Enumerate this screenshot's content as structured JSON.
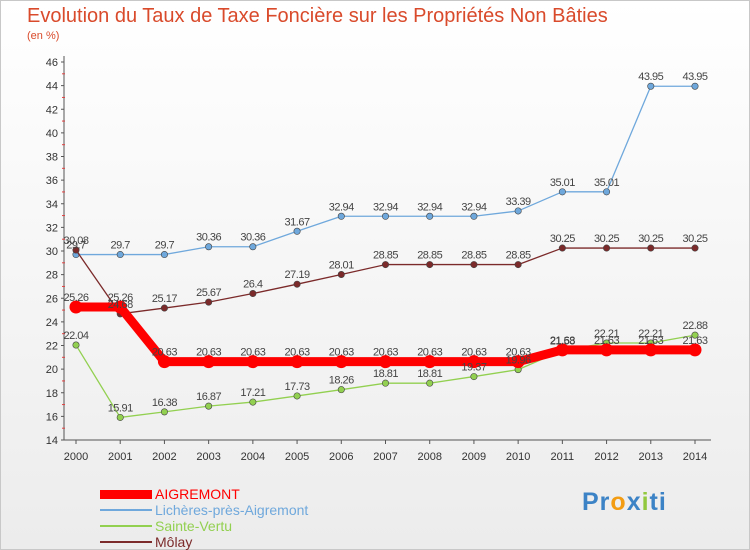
{
  "chart_data": {
    "type": "line",
    "title": "Evolution du Taux de Taxe Foncière sur les Propriétés Non Bâties",
    "ylabel": "(en %)",
    "xlabel": "",
    "ylim": [
      14,
      46
    ],
    "yticks": [
      14,
      16,
      18,
      20,
      22,
      24,
      26,
      28,
      30,
      32,
      34,
      36,
      38,
      40,
      42,
      44,
      46
    ],
    "x": [
      "2000",
      "2001",
      "2002",
      "2003",
      "2004",
      "2005",
      "2006",
      "2007",
      "2008",
      "2009",
      "2010",
      "2011",
      "2012",
      "2013",
      "2014"
    ],
    "grid": false,
    "legend_position": "bottom-left",
    "series": [
      {
        "name": "AIGREMONT",
        "color": "#ff0000",
        "values": [
          25.26,
          25.26,
          20.63,
          20.63,
          20.63,
          20.63,
          20.63,
          20.63,
          20.63,
          20.63,
          20.63,
          21.63,
          21.63,
          21.63,
          21.63
        ],
        "labels": [
          "25.26",
          "25.26",
          "20.63",
          "20.63",
          "20.63",
          "20.63",
          "20.63",
          "20.63",
          "20.63",
          "20.63",
          "20.63",
          "21.63",
          "21.63",
          "21.63",
          "21.63"
        ]
      },
      {
        "name": "Lichères-près-Aigremont",
        "color": "#6fa8dc",
        "values": [
          29.7,
          29.7,
          29.7,
          30.36,
          30.36,
          31.67,
          32.94,
          32.94,
          32.94,
          32.94,
          33.39,
          35.01,
          35.01,
          43.95,
          43.95
        ],
        "labels": [
          "29.7",
          "29.7",
          "29.7",
          "30.36",
          "30.36",
          "31.67",
          "32.94",
          "32.94",
          "32.94",
          "32.94",
          "33.39",
          "35.01",
          "35.01",
          "43.95",
          "43.95"
        ]
      },
      {
        "name": "Sainte-Vertu",
        "color": "#92d050",
        "values": [
          22.04,
          15.91,
          16.38,
          16.87,
          17.21,
          17.73,
          18.26,
          18.81,
          18.81,
          19.37,
          19.96,
          21.58,
          22.21,
          22.21,
          22.88
        ],
        "labels": [
          "22.04",
          "15.91",
          "16.38",
          "16.87",
          "17.21",
          "17.73",
          "18.26",
          "18.81",
          "18.81",
          "19.37",
          "19.96",
          "21.58",
          "22.21",
          "22.21",
          "22.88"
        ]
      },
      {
        "name": "Môlay",
        "color": "#7b2a2a",
        "values": [
          30.08,
          24.68,
          25.17,
          25.67,
          26.4,
          27.19,
          28.01,
          28.85,
          28.85,
          28.85,
          28.85,
          30.25,
          30.25,
          30.25,
          30.25
        ],
        "labels": [
          "30.08",
          "24.68",
          "25.17",
          "25.67",
          "26.4",
          "27.19",
          "28.01",
          "28.85",
          "28.85",
          "28.85",
          "28.85",
          "30.25",
          "30.25",
          "30.25",
          "30.25"
        ]
      }
    ]
  },
  "logo": {
    "parts": [
      {
        "text": "Pr",
        "color": "#3c83c6"
      },
      {
        "text": "o",
        "color": "#f39c12"
      },
      {
        "text": "x",
        "color": "#3c83c6"
      },
      {
        "text": "i",
        "color": "#92c83e"
      },
      {
        "text": "ti",
        "color": "#3c83c6"
      }
    ]
  }
}
